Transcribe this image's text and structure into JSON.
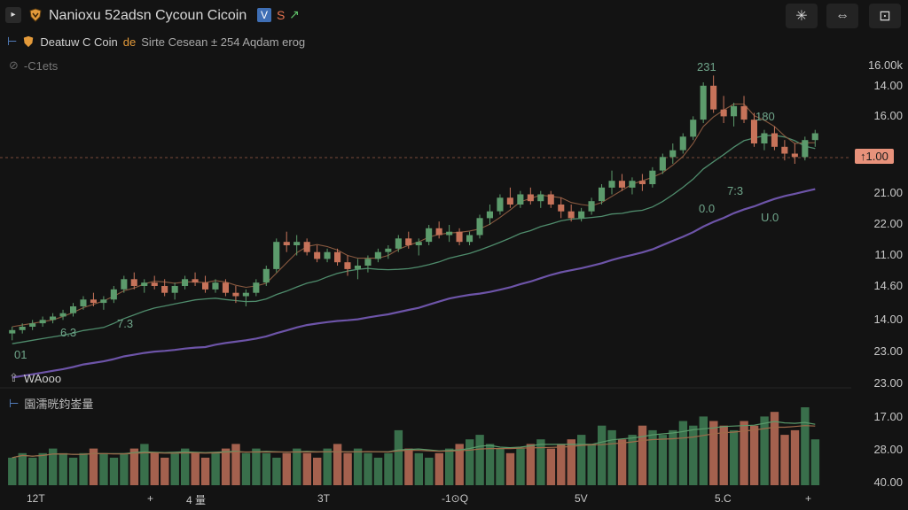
{
  "topbar": {
    "title": "Nanioxu 52adsn Cycoun Cicoin",
    "badge_v": "V",
    "badge_s": "S",
    "badge_arrow": "↗",
    "buttons": [
      "✳",
      "⇔",
      "⊡"
    ]
  },
  "legend": {
    "symbol_line": "Deatuw C Coin",
    "symbol_accent": "de",
    "symbol_rest": "Sirte Cesean ± 254 Aqdam erog",
    "sub_label": "-C1ets"
  },
  "volume_pane": {
    "header": "WAooo",
    "sub_header": "園濡晄鈞崟量"
  },
  "price_axis": [
    "16.00k",
    "14.00",
    "16.00",
    "21.00",
    "22.00",
    "11.00",
    "14.60",
    "14.00",
    "23.00",
    "23.00"
  ],
  "volume_axis": [
    "17.00",
    "28.00",
    "40.00"
  ],
  "last_price": "1.00",
  "x_axis": [
    "12T",
    "+",
    "4 量",
    "3T",
    "-1⊙Q",
    "5V",
    "5.C",
    "+"
  ],
  "annotations": [
    "231",
    "180",
    "7:3",
    "0.0",
    "U.0",
    "7.3",
    "6.3",
    "01"
  ],
  "colors": {
    "up": "#5c9b6c",
    "down": "#c7735a",
    "ma_slow": "#6d54a8",
    "ma_mid": "#4f8c6c",
    "ma_fast": "#8a5a40",
    "background": "#131313"
  },
  "chart_data": {
    "type": "candlestick",
    "series": [
      {
        "name": "price",
        "open": [],
        "close": []
      }
    ],
    "candles": [
      [
        10,
        12,
        8,
        11
      ],
      [
        11,
        13,
        10,
        12
      ],
      [
        12,
        14,
        11,
        13
      ],
      [
        13,
        15,
        12,
        14
      ],
      [
        14,
        16,
        13,
        15
      ],
      [
        15,
        17,
        14,
        16
      ],
      [
        16,
        19,
        15,
        18
      ],
      [
        18,
        21,
        17,
        20
      ],
      [
        20,
        22,
        18,
        19
      ],
      [
        19,
        21,
        17,
        20
      ],
      [
        20,
        24,
        19,
        23
      ],
      [
        23,
        27,
        22,
        26
      ],
      [
        26,
        28,
        23,
        24
      ],
      [
        24,
        26,
        22,
        25
      ],
      [
        25,
        27,
        23,
        24
      ],
      [
        24,
        26,
        21,
        22
      ],
      [
        22,
        25,
        20,
        24
      ],
      [
        24,
        27,
        23,
        26
      ],
      [
        26,
        28,
        24,
        25
      ],
      [
        25,
        27,
        22,
        23
      ],
      [
        23,
        26,
        22,
        25
      ],
      [
        25,
        26,
        21,
        22
      ],
      [
        22,
        24,
        19,
        21
      ],
      [
        21,
        23,
        18,
        22
      ],
      [
        22,
        26,
        21,
        25
      ],
      [
        25,
        30,
        24,
        29
      ],
      [
        29,
        38,
        28,
        37
      ],
      [
        37,
        40,
        34,
        36
      ],
      [
        36,
        39,
        33,
        37
      ],
      [
        37,
        38,
        33,
        34
      ],
      [
        34,
        36,
        31,
        32
      ],
      [
        32,
        35,
        31,
        34
      ],
      [
        34,
        35,
        30,
        31
      ],
      [
        31,
        33,
        27,
        29
      ],
      [
        29,
        32,
        26,
        30
      ],
      [
        30,
        33,
        28,
        32
      ],
      [
        32,
        35,
        31,
        34
      ],
      [
        34,
        36,
        32,
        35
      ],
      [
        35,
        39,
        34,
        38
      ],
      [
        38,
        40,
        35,
        36
      ],
      [
        36,
        38,
        33,
        37
      ],
      [
        37,
        42,
        36,
        41
      ],
      [
        41,
        43,
        38,
        39
      ],
      [
        39,
        42,
        37,
        40
      ],
      [
        40,
        41,
        36,
        37
      ],
      [
        37,
        40,
        36,
        39
      ],
      [
        39,
        45,
        38,
        44
      ],
      [
        44,
        48,
        42,
        46
      ],
      [
        46,
        51,
        45,
        50
      ],
      [
        50,
        53,
        47,
        48
      ],
      [
        48,
        52,
        47,
        51
      ],
      [
        51,
        53,
        48,
        49
      ],
      [
        49,
        52,
        47,
        51
      ],
      [
        51,
        52,
        47,
        48
      ],
      [
        48,
        50,
        44,
        46
      ],
      [
        46,
        48,
        43,
        44
      ],
      [
        44,
        47,
        43,
        46
      ],
      [
        46,
        50,
        45,
        49
      ],
      [
        49,
        54,
        48,
        53
      ],
      [
        53,
        58,
        51,
        55
      ],
      [
        55,
        57,
        52,
        53
      ],
      [
        53,
        56,
        51,
        55
      ],
      [
        55,
        57,
        52,
        54
      ],
      [
        54,
        59,
        53,
        58
      ],
      [
        58,
        63,
        57,
        62
      ],
      [
        62,
        66,
        60,
        64
      ],
      [
        64,
        69,
        63,
        68
      ],
      [
        68,
        74,
        67,
        73
      ],
      [
        73,
        84,
        72,
        83
      ],
      [
        83,
        86,
        75,
        76
      ],
      [
        76,
        80,
        72,
        74
      ],
      [
        74,
        78,
        71,
        77
      ],
      [
        77,
        80,
        72,
        73
      ],
      [
        73,
        75,
        65,
        66
      ],
      [
        66,
        70,
        64,
        69
      ],
      [
        69,
        71,
        64,
        65
      ],
      [
        65,
        67,
        61,
        63
      ],
      [
        63,
        66,
        60,
        62
      ],
      [
        62,
        68,
        61,
        67
      ],
      [
        67,
        70,
        65,
        69
      ]
    ],
    "volumes": [
      6,
      7,
      6,
      7,
      8,
      7,
      6,
      7,
      8,
      7,
      6,
      7,
      8,
      9,
      7,
      6,
      7,
      8,
      7,
      6,
      7,
      8,
      9,
      7,
      8,
      7,
      6,
      7,
      8,
      7,
      6,
      8,
      9,
      7,
      8,
      7,
      6,
      7,
      12,
      8,
      7,
      6,
      7,
      8,
      9,
      10,
      11,
      9,
      8,
      7,
      8,
      9,
      10,
      8,
      9,
      10,
      11,
      9,
      13,
      12,
      10,
      11,
      13,
      12,
      11,
      12,
      14,
      13,
      15,
      14,
      13,
      12,
      14,
      13,
      15,
      16,
      11,
      12,
      17,
      10
    ],
    "ylim": [
      0,
      90
    ]
  }
}
